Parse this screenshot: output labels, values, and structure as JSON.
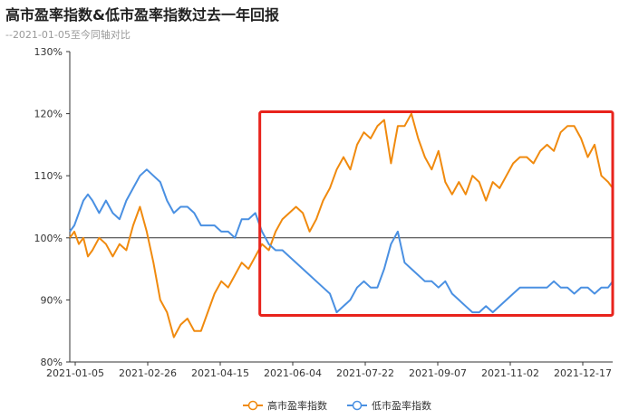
{
  "title": "高市盈率指数&低市盈率指数过去一年回报",
  "subtitle": "--2021-01-05至今同轴对比",
  "colors": {
    "high": "#f08a0e",
    "low": "#4a90e2",
    "highlight": "#e8231c",
    "axis": "#333333",
    "grid": "#333333"
  },
  "chart_data": {
    "type": "line",
    "title": "高市盈率指数&低市盈率指数过去一年回报",
    "subtitle": "--2021-01-05至今同轴对比",
    "x_tick_labels": [
      "2021-01-05",
      "2021-02-26",
      "2021-04-15",
      "2021-06-04",
      "2021-07-22",
      "2021-09-07",
      "2021-11-02",
      "2021-12-17"
    ],
    "y_tick_labels": [
      "80%",
      "90%",
      "100%",
      "110%",
      "120%",
      "130%"
    ],
    "ylim": [
      80,
      130
    ],
    "x_range": [
      0,
      240
    ],
    "baseline": 100,
    "legend_position": "bottom-center",
    "series": [
      {
        "name": "高市盈率指数",
        "color": "#f08a0e",
        "x": [
          0,
          2,
          4,
          6,
          8,
          10,
          13,
          16,
          19,
          22,
          25,
          28,
          31,
          34,
          37,
          40,
          43,
          46,
          49,
          52,
          55,
          58,
          61,
          64,
          67,
          70,
          73,
          76,
          79,
          82,
          85,
          88,
          91,
          94,
          97,
          100,
          103,
          106,
          109,
          112,
          115,
          118,
          121,
          124,
          127,
          130,
          133,
          136,
          139,
          142,
          145,
          148,
          151,
          154,
          157,
          160,
          163,
          166,
          169,
          172,
          175,
          178,
          181,
          184,
          187,
          190,
          193,
          196,
          199,
          202,
          205,
          208,
          211,
          214,
          217,
          220,
          223,
          226,
          229,
          232,
          235,
          238,
          240
        ],
        "values": [
          100,
          101,
          99,
          100,
          97,
          98,
          100,
          99,
          97,
          99,
          98,
          102,
          105,
          101,
          96,
          90,
          88,
          84,
          86,
          87,
          85,
          85,
          88,
          91,
          93,
          92,
          94,
          96,
          95,
          97,
          99,
          98,
          101,
          103,
          104,
          105,
          104,
          101,
          103,
          106,
          108,
          111,
          113,
          111,
          115,
          117,
          116,
          118,
          119,
          112,
          118,
          118,
          120,
          116,
          113,
          111,
          114,
          109,
          107,
          109,
          107,
          110,
          109,
          106,
          109,
          108,
          110,
          112,
          113,
          113,
          112,
          114,
          115,
          114,
          117,
          118,
          118,
          116,
          113,
          115,
          110,
          109,
          108
        ]
      },
      {
        "name": "低市盈率指数",
        "color": "#4a90e2",
        "x": [
          0,
          2,
          4,
          6,
          8,
          10,
          13,
          16,
          19,
          22,
          25,
          28,
          31,
          34,
          37,
          40,
          43,
          46,
          49,
          52,
          55,
          58,
          61,
          64,
          67,
          70,
          73,
          76,
          79,
          82,
          85,
          88,
          91,
          94,
          97,
          100,
          103,
          106,
          109,
          112,
          115,
          118,
          121,
          124,
          127,
          130,
          133,
          136,
          139,
          142,
          145,
          148,
          151,
          154,
          157,
          160,
          163,
          166,
          169,
          172,
          175,
          178,
          181,
          184,
          187,
          190,
          193,
          196,
          199,
          202,
          205,
          208,
          211,
          214,
          217,
          220,
          223,
          226,
          229,
          232,
          235,
          238,
          240
        ],
        "values": [
          101,
          102,
          104,
          106,
          107,
          106,
          104,
          106,
          104,
          103,
          106,
          108,
          110,
          111,
          110,
          109,
          106,
          104,
          105,
          105,
          104,
          102,
          102,
          102,
          101,
          101,
          100,
          103,
          103,
          104,
          101,
          99,
          98,
          98,
          97,
          96,
          95,
          94,
          93,
          92,
          91,
          88,
          89,
          90,
          92,
          93,
          92,
          92,
          95,
          99,
          101,
          96,
          95,
          94,
          93,
          93,
          92,
          93,
          91,
          90,
          89,
          88,
          88,
          89,
          88,
          89,
          90,
          91,
          92,
          92,
          92,
          92,
          92,
          93,
          92,
          92,
          91,
          92,
          92,
          91,
          92,
          92,
          93
        ]
      }
    ],
    "annotations": [
      {
        "type": "rectangle",
        "color": "#e8231c",
        "x_range": [
          84,
          240
        ],
        "y_range": [
          87.5,
          120.3
        ]
      }
    ]
  }
}
